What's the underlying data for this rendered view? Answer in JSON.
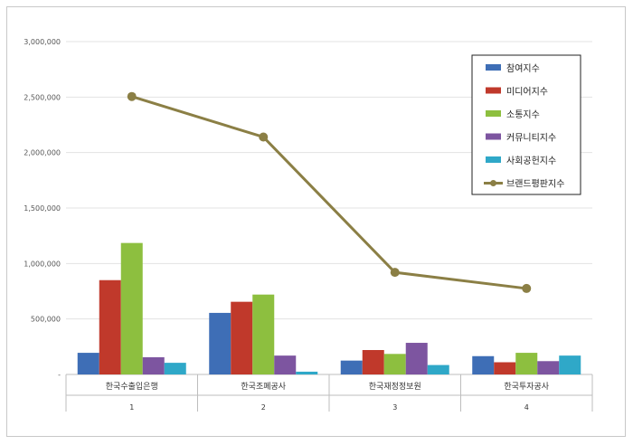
{
  "chart_data": {
    "type": "bar",
    "categories": [
      "한국수출입은행",
      "한국조폐공사",
      "한국재정정보원",
      "한국투자공사"
    ],
    "group_labels": [
      "1",
      "2",
      "3",
      "4"
    ],
    "ylim": [
      0,
      3000000
    ],
    "y_ticks": [
      0,
      500000,
      1000000,
      1500000,
      2000000,
      2500000,
      3000000
    ],
    "y_tick_labels": [
      "-",
      "500,000",
      "1,000,000",
      "1,500,000",
      "2,000,000",
      "2,500,000",
      "3,000,000"
    ],
    "grid": true,
    "legend_position": "top-right",
    "series": [
      {
        "name": "참여지수",
        "kind": "bar",
        "color": "#3E6EB6",
        "values": [
          195000,
          555000,
          125000,
          165000
        ]
      },
      {
        "name": "미디어지수",
        "kind": "bar",
        "color": "#C0392B",
        "values": [
          850000,
          655000,
          220000,
          110000
        ]
      },
      {
        "name": "소통지수",
        "kind": "bar",
        "color": "#8DBF3F",
        "values": [
          1185000,
          720000,
          185000,
          195000
        ]
      },
      {
        "name": "커뮤니티지수",
        "kind": "bar",
        "color": "#7D55A0",
        "values": [
          155000,
          170000,
          285000,
          120000
        ]
      },
      {
        "name": "사회공헌지수",
        "kind": "bar",
        "color": "#2FA8C8",
        "values": [
          105000,
          25000,
          85000,
          170000
        ]
      },
      {
        "name": "브랜드평판지수",
        "kind": "line",
        "color": "#8B7F45",
        "values": [
          2505000,
          2140000,
          920000,
          775000
        ]
      }
    ]
  }
}
